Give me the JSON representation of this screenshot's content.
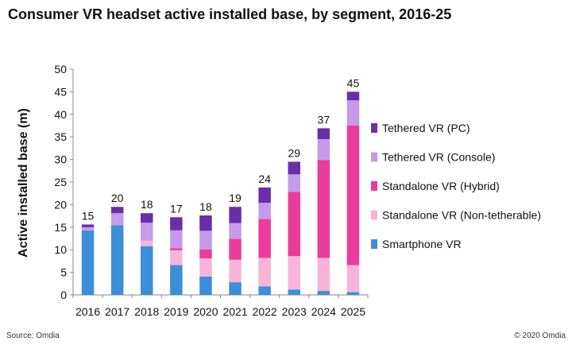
{
  "chart_data": {
    "type": "bar",
    "stacked": true,
    "title": "Consumer VR headset active installed base, by segment, 2016-25",
    "xlabel": "",
    "ylabel": "Active installed base (m)",
    "ylim": [
      0,
      50
    ],
    "yticks": [
      "0",
      "5",
      "10",
      "15",
      "20",
      "25",
      "30",
      "35",
      "40",
      "45",
      "50"
    ],
    "categories": [
      "2016",
      "2017",
      "2018",
      "2019",
      "2020",
      "2021",
      "2022",
      "2023",
      "2024",
      "2025"
    ],
    "totals": [
      "15",
      "20",
      "18",
      "17",
      "18",
      "19",
      "24",
      "29",
      "37",
      "45"
    ],
    "series": [
      {
        "name": "Smartphone VR",
        "color": "#3b8fd8",
        "values": [
          14.3,
          15.4,
          10.8,
          6.6,
          4.1,
          2.8,
          1.9,
          1.2,
          0.9,
          0.6
        ]
      },
      {
        "name": "Standalone VR (Non-tetherable)",
        "color": "#f6b5d8",
        "values": [
          0.0,
          0.0,
          1.2,
          3.3,
          4.0,
          5.0,
          6.3,
          7.4,
          7.3,
          6.0
        ]
      },
      {
        "name": "Standalone VR (Hybrid)",
        "color": "#ea3d9b",
        "values": [
          0.0,
          0.0,
          0.0,
          0.4,
          2.0,
          4.6,
          8.6,
          14.2,
          21.7,
          30.9
        ]
      },
      {
        "name": "Tethered VR (Console)",
        "color": "#c59be8",
        "values": [
          0.7,
          2.7,
          4.0,
          4.0,
          4.1,
          3.5,
          3.6,
          3.9,
          4.6,
          5.6
        ]
      },
      {
        "name": "Tethered VR (PC)",
        "color": "#6a2ea8",
        "values": [
          0.6,
          1.4,
          2.1,
          2.9,
          3.4,
          3.6,
          3.4,
          2.8,
          2.4,
          1.9
        ]
      }
    ],
    "legend_order": [
      "Tethered VR (PC)",
      "Tethered VR (Console)",
      "Standalone VR (Hybrid)",
      "Standalone VR (Non-tetherable)",
      "Smartphone VR"
    ],
    "legend_position": "right",
    "grid": false
  },
  "footer": {
    "source": "Source: Omdia",
    "copyright": "© 2020 Omdia"
  }
}
